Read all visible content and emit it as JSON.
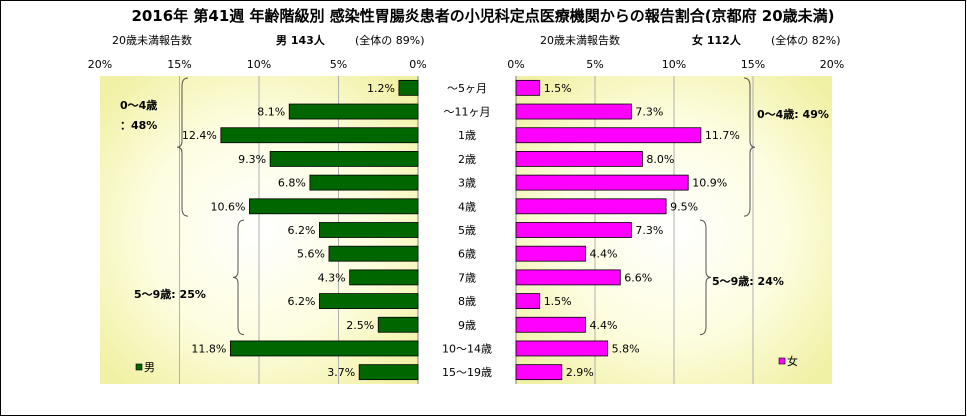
{
  "title": "2016年 第41週 年齢階級別 感染性胃腸炎患者の小児科定点医療機関からの報告割合(京都府 20歳未満)",
  "chart_data": {
    "type": "bar",
    "orientation": "horizontal-population-pyramid",
    "categories": [
      "～5ヶ月",
      "～11ヶ月",
      "1歳",
      "2歳",
      "3歳",
      "4歳",
      "5歳",
      "6歳",
      "7歳",
      "8歳",
      "9歳",
      "10～14歳",
      "15～19歳"
    ],
    "xlim": [
      0,
      20
    ],
    "ticks": [
      "0%",
      "5%",
      "10%",
      "15%",
      "20%"
    ],
    "grid": true,
    "series": [
      {
        "name": "男",
        "side": "left",
        "color": "#006600",
        "header_left": "20歳未満報告数",
        "header_main": "男 143人",
        "header_paren": "(全体の 89%)",
        "values": [
          1.2,
          8.1,
          12.4,
          9.3,
          6.8,
          10.6,
          6.2,
          5.6,
          4.3,
          6.2,
          2.5,
          11.8,
          3.7
        ],
        "value_labels": [
          "1.2%",
          "8.1%",
          "12.4%",
          "9.3%",
          "6.8%",
          "10.6%",
          "6.2%",
          "5.6%",
          "4.3%",
          "6.2%",
          "2.5%",
          "11.8%",
          "3.7%"
        ],
        "groups": [
          {
            "label_line1": "0～4歳",
            "label_line2": "：48%",
            "from": 0,
            "to": 5
          },
          {
            "label_line1": "5～9歳: 25%",
            "label_line2": "",
            "from": 6,
            "to": 10
          }
        ]
      },
      {
        "name": "女",
        "side": "right",
        "color": "#ff00ff",
        "header_left": "20歳未満報告数",
        "header_main": "女 112人",
        "header_paren": "(全体の 82%)",
        "values": [
          1.5,
          7.3,
          11.7,
          8.0,
          10.9,
          9.5,
          7.3,
          4.4,
          6.6,
          1.5,
          4.4,
          5.8,
          2.9
        ],
        "value_labels": [
          "1.5%",
          "7.3%",
          "11.7%",
          "8.0%",
          "10.9%",
          "9.5%",
          "7.3%",
          "4.4%",
          "6.6%",
          "1.5%",
          "4.4%",
          "5.8%",
          "2.9%"
        ],
        "groups": [
          {
            "label_line1": "0～4歳: 49%",
            "label_line2": "",
            "from": 0,
            "to": 5
          },
          {
            "label_line1": "5～9歳: 24%",
            "label_line2": "",
            "from": 6,
            "to": 10
          }
        ]
      }
    ]
  }
}
